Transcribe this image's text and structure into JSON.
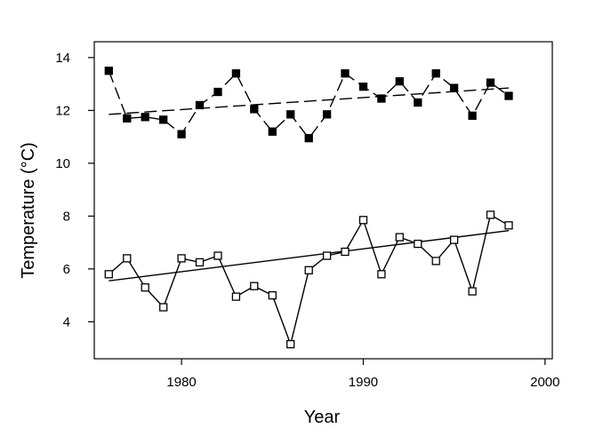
{
  "chart_data": {
    "type": "line",
    "title": "",
    "xlabel": "Year",
    "ylabel": "Temperature (°C)",
    "xlim": [
      1975.2,
      2000.4
    ],
    "ylim": [
      2.6,
      14.6
    ],
    "xticks": [
      1980,
      1990,
      2000
    ],
    "yticks": [
      4,
      6,
      8,
      10,
      12,
      14
    ],
    "grid": false,
    "legend": "none",
    "x": [
      1976,
      1977,
      1978,
      1979,
      1980,
      1981,
      1982,
      1983,
      1984,
      1985,
      1986,
      1987,
      1988,
      1989,
      1990,
      1991,
      1992,
      1993,
      1994,
      1995,
      1996,
      1997,
      1998
    ],
    "series": [
      {
        "marker": "filled-square",
        "line": "dashed",
        "values": [
          13.5,
          11.7,
          11.75,
          11.65,
          11.1,
          12.2,
          12.7,
          13.4,
          12.05,
          11.2,
          11.85,
          10.95,
          11.85,
          13.4,
          12.9,
          12.45,
          13.1,
          12.3,
          13.4,
          12.85,
          11.8,
          13.05,
          12.55
        ]
      },
      {
        "marker": "open-square",
        "line": "solid",
        "values": [
          5.8,
          6.4,
          5.3,
          4.55,
          6.4,
          6.25,
          6.5,
          4.95,
          5.35,
          5.0,
          3.15,
          5.95,
          6.5,
          6.65,
          7.85,
          5.8,
          7.2,
          6.95,
          6.3,
          7.1,
          5.15,
          8.05,
          7.65
        ]
      }
    ],
    "trend_lines": [
      {
        "line": "dashed",
        "x": [
          1976,
          1998
        ],
        "y": [
          11.85,
          12.85
        ]
      },
      {
        "line": "solid",
        "x": [
          1976,
          1998
        ],
        "y": [
          5.55,
          7.45
        ]
      }
    ]
  }
}
